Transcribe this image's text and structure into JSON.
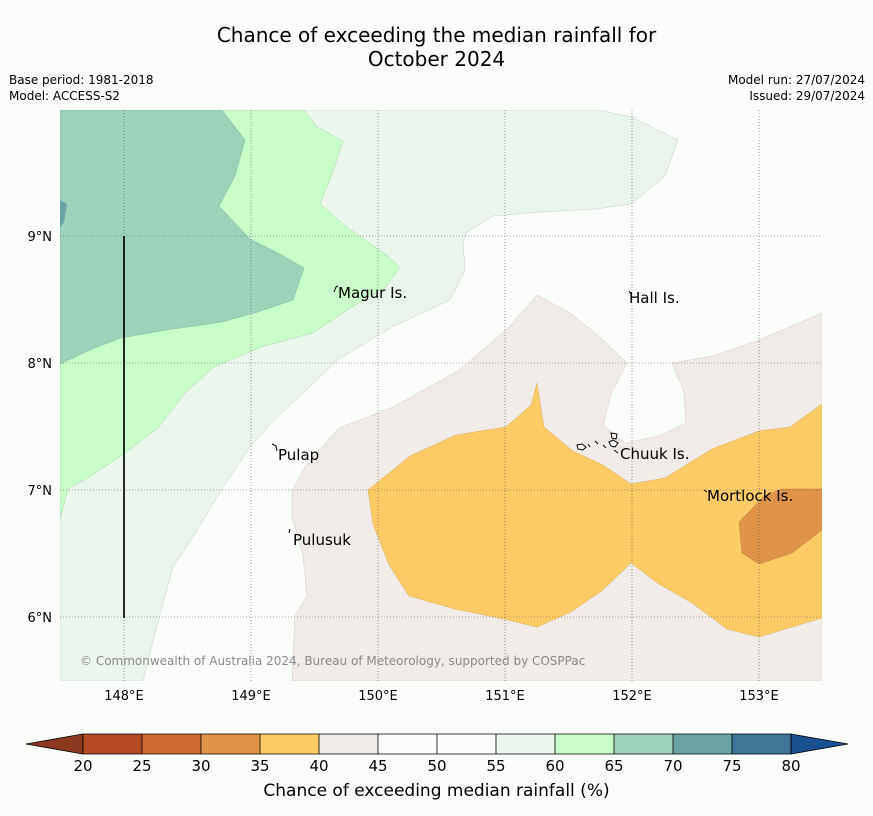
{
  "title": {
    "line1": "Chance of exceeding the median rainfall for",
    "line2": "October 2024"
  },
  "meta": {
    "base_period": "Base period: 1981-2018",
    "model": "Model: ACCESS-S2",
    "model_run": "Model run: 27/07/2024",
    "issued": "Issued: 29/07/2024"
  },
  "map": {
    "lon_ticks": [
      "148°E",
      "149°E",
      "150°E",
      "151°E",
      "152°E",
      "153°E"
    ],
    "lat_ticks": [
      "9°N",
      "8°N",
      "7°N",
      "6°N"
    ],
    "places": [
      {
        "id": "magur",
        "label": "Magur Is."
      },
      {
        "id": "hall",
        "label": "Hall Is."
      },
      {
        "id": "pulap",
        "label": "Pulap"
      },
      {
        "id": "chuuk",
        "label": "Chuuk Is."
      },
      {
        "id": "mortlock",
        "label": "Mortlock Is."
      },
      {
        "id": "pulusuk",
        "label": "Pulusuk"
      }
    ],
    "copyright": "© Commonwealth of Australia 2024, Bureau of Meteorology, supported by COSPPac"
  },
  "colorbar": {
    "label": "Chance of exceeding median rainfall (%)",
    "ticks": [
      "20",
      "25",
      "30",
      "35",
      "40",
      "45",
      "50",
      "55",
      "60",
      "65",
      "70",
      "75",
      "80"
    ],
    "colors": {
      "under": "#8c3a1f",
      "c20_25": "#b34a24",
      "c25_30": "#cf6a33",
      "c30_35": "#e0944a",
      "c35_40": "#fecb67",
      "c40_45": "#f0ebe6",
      "c45_50": "#fbfdfb",
      "c50_55": "#fbfdfb",
      "c55_60": "#eaf5eb",
      "c60_65": "#c8fcc8",
      "c65_70": "#9dd1b9",
      "c70_75": "#6aa3a3",
      "c75_80": "#3f7595",
      "over": "#19508f"
    }
  }
}
